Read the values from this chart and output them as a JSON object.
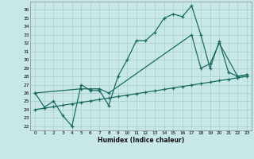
{
  "xlabel": "Humidex (Indice chaleur)",
  "color": "#1a6b60",
  "background_color": "#c8e8e8",
  "grid_color": "#a8cccc",
  "xlim": [
    -0.5,
    23.5
  ],
  "ylim": [
    21.5,
    37.0
  ],
  "yticks": [
    22,
    23,
    24,
    25,
    26,
    27,
    28,
    29,
    30,
    31,
    32,
    33,
    34,
    35,
    36
  ],
  "xticks": [
    0,
    1,
    2,
    3,
    4,
    5,
    6,
    7,
    8,
    9,
    10,
    11,
    12,
    13,
    14,
    15,
    16,
    17,
    18,
    19,
    20,
    21,
    22,
    23
  ],
  "curve1_x": [
    0,
    1,
    2,
    3,
    4,
    5,
    6,
    7,
    8,
    9,
    10,
    11,
    12,
    13,
    14,
    15,
    16,
    17,
    18,
    19,
    20,
    21,
    22,
    23
  ],
  "curve1_y": [
    26.0,
    24.3,
    25.0,
    23.3,
    22.0,
    27.0,
    26.3,
    26.3,
    24.5,
    28.0,
    30.0,
    32.3,
    32.3,
    33.3,
    35.0,
    35.5,
    35.2,
    36.5,
    33.0,
    29.0,
    32.2,
    28.5,
    28.0,
    28.2
  ],
  "curve2_x": [
    0,
    5,
    6,
    7,
    8,
    17,
    18,
    19,
    20,
    22,
    23
  ],
  "curve2_y": [
    26.0,
    26.5,
    26.5,
    26.5,
    26.0,
    33.0,
    29.0,
    29.5,
    32.0,
    28.0,
    28.2
  ],
  "curve3_x": [
    0,
    1,
    2,
    3,
    4,
    5,
    6,
    7,
    8,
    9,
    10,
    11,
    12,
    13,
    14,
    15,
    16,
    17,
    18,
    19,
    20,
    21,
    22,
    23
  ],
  "curve3_y": [
    24.0,
    24.17,
    24.35,
    24.52,
    24.7,
    24.87,
    25.04,
    25.22,
    25.39,
    25.57,
    25.74,
    25.91,
    26.09,
    26.26,
    26.43,
    26.61,
    26.78,
    26.96,
    27.13,
    27.3,
    27.48,
    27.65,
    27.83,
    28.0
  ]
}
